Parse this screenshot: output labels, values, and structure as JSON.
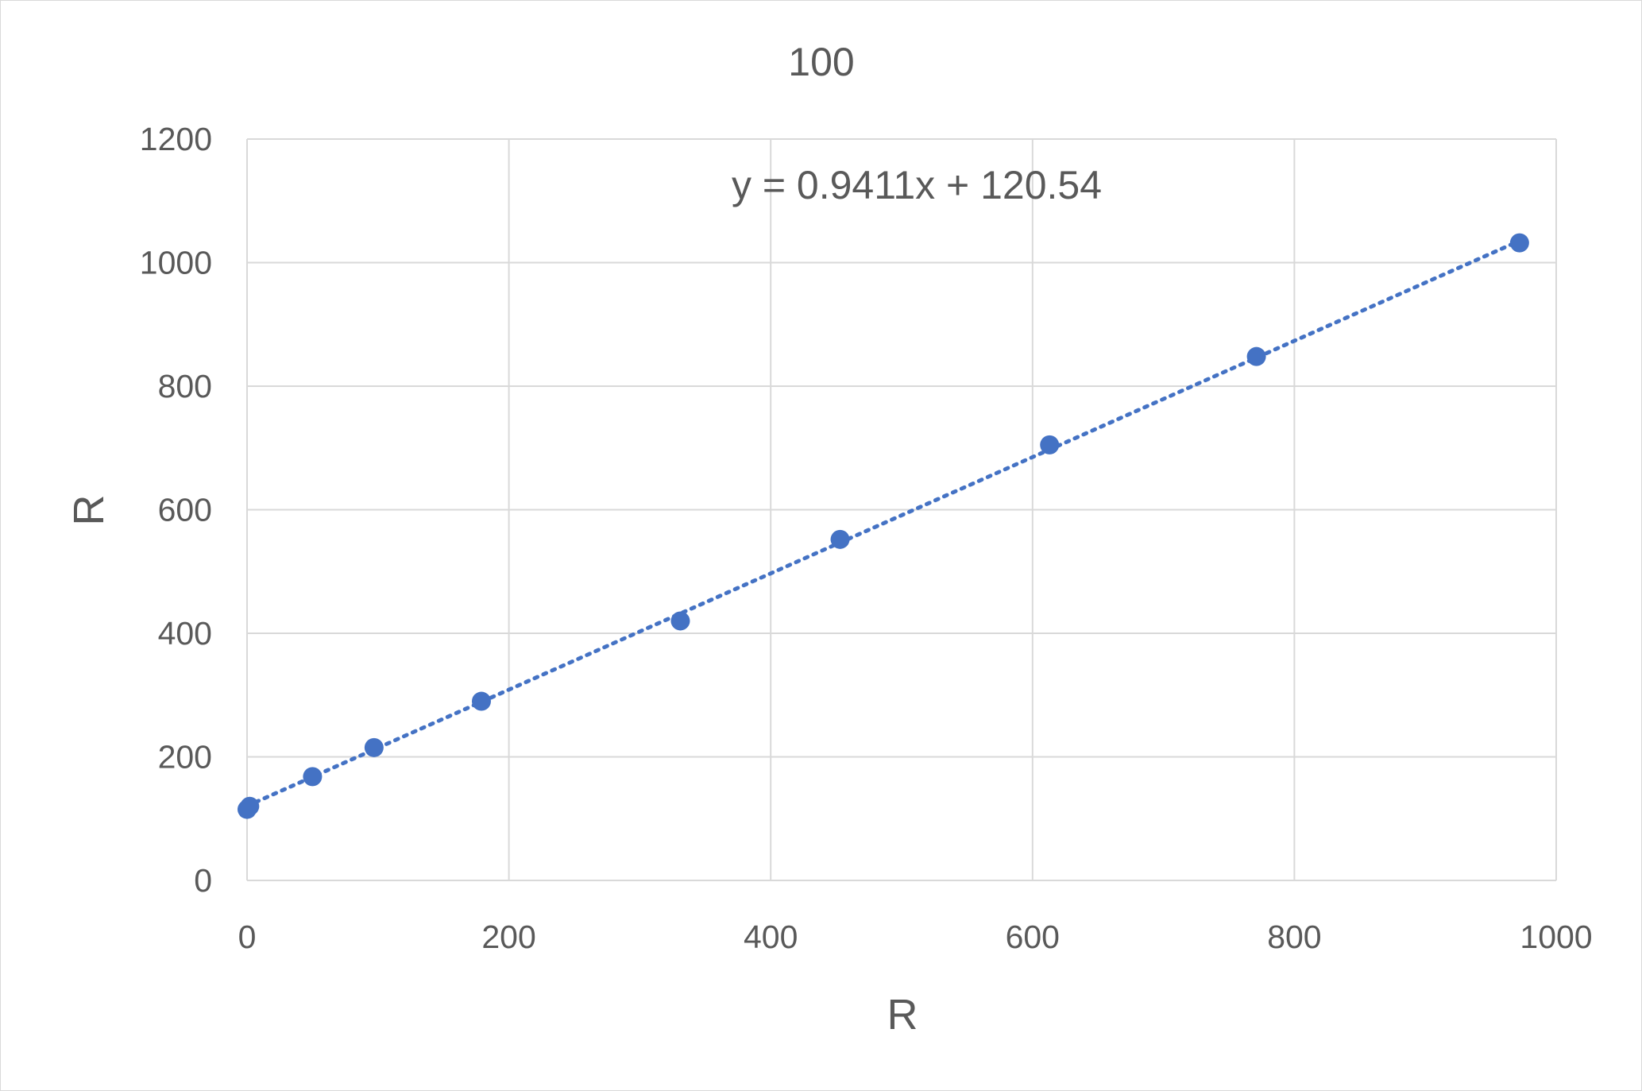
{
  "chart_data": {
    "type": "scatter",
    "title": "100",
    "xlabel": "R",
    "ylabel": "R",
    "xlim": [
      0,
      1000
    ],
    "ylim": [
      0,
      1200
    ],
    "x_ticks": [
      "0",
      "200",
      "400",
      "600",
      "800",
      "1000"
    ],
    "y_ticks": [
      "0",
      "200",
      "400",
      "600",
      "800",
      "1000",
      "1200"
    ],
    "grid": true,
    "series": [
      {
        "marker_color": "#4472c4",
        "x": [
          0,
          2,
          50,
          97,
          179,
          331,
          453,
          613,
          771,
          972
        ],
        "y": [
          115,
          120,
          168,
          215,
          290,
          420,
          552,
          705,
          848,
          1032
        ]
      }
    ],
    "trendline": {
      "type": "linear",
      "slope": 0.9411,
      "intercept": 120.54,
      "style": "dotted",
      "color": "#4472c4",
      "equation_label": "y = 0.9411x + 120.54"
    },
    "gridline_color": "#d9d9d9"
  }
}
